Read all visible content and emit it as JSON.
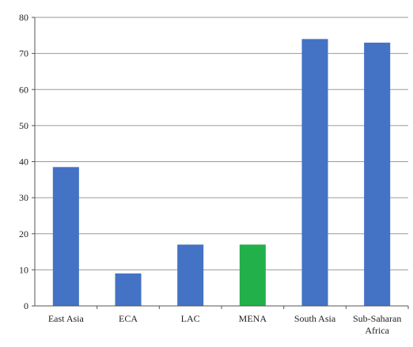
{
  "chart_data": {
    "type": "bar",
    "title": "",
    "xlabel": "",
    "ylabel": "",
    "categories": [
      "East Asia",
      "ECA",
      "LAC",
      "MENA",
      "South Asia",
      "Sub-Saharan Africa"
    ],
    "values": [
      38.5,
      9,
      17,
      17,
      74,
      73
    ],
    "ylim": [
      0,
      80
    ],
    "yticks": [
      0,
      10,
      20,
      30,
      40,
      50,
      60,
      70,
      80
    ],
    "grid": true,
    "legend": "none",
    "colors": {
      "default_bar": "#4472C4",
      "highlight_bar": "#22B04B",
      "gridline": "#9a9a9a",
      "axis": "#555555"
    },
    "highlight_category": "MENA"
  }
}
